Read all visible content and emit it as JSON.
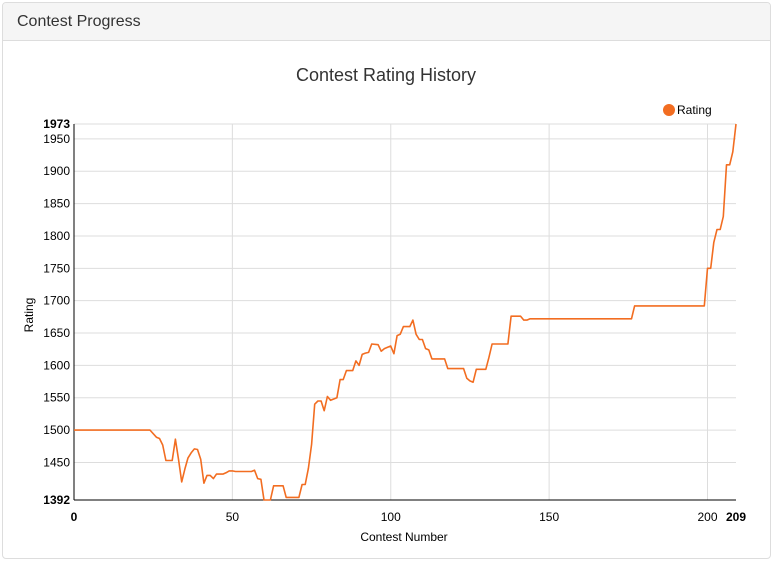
{
  "panel": {
    "heading": "Contest Progress"
  },
  "colors": {
    "series": "#f26d21",
    "grid": "#dddddd",
    "heading_bg": "#f5f5f5"
  },
  "chart_data": {
    "type": "line",
    "title": "Contest Rating History",
    "xlabel": "Contest Number",
    "ylabel": "Rating",
    "xlim": [
      0,
      209
    ],
    "ylim": [
      1392,
      1973
    ],
    "xticks": [
      0,
      50,
      100,
      150,
      200,
      209
    ],
    "yticks": [
      1392,
      1450,
      1500,
      1550,
      1600,
      1650,
      1700,
      1750,
      1800,
      1850,
      1900,
      1950,
      1973
    ],
    "bold_ticks": {
      "x": [
        0,
        209
      ],
      "y": [
        1392,
        1973
      ]
    },
    "grid": true,
    "legend_position": "top-right",
    "series": [
      {
        "name": "Rating",
        "points": [
          [
            0,
            1500
          ],
          [
            24,
            1500
          ],
          [
            26,
            1489
          ],
          [
            27,
            1487
          ],
          [
            28,
            1477
          ],
          [
            29,
            1453
          ],
          [
            31,
            1453
          ],
          [
            32,
            1486
          ],
          [
            33,
            1455
          ],
          [
            34,
            1420
          ],
          [
            35,
            1440
          ],
          [
            36,
            1457
          ],
          [
            37,
            1465
          ],
          [
            38,
            1471
          ],
          [
            39,
            1470
          ],
          [
            40,
            1455
          ],
          [
            41,
            1418
          ],
          [
            42,
            1430
          ],
          [
            43,
            1430
          ],
          [
            44,
            1425
          ],
          [
            45,
            1432
          ],
          [
            47,
            1432
          ],
          [
            48,
            1434
          ],
          [
            49,
            1437
          ],
          [
            50,
            1437
          ],
          [
            51,
            1436
          ],
          [
            56,
            1436
          ],
          [
            57,
            1438
          ],
          [
            58,
            1425
          ],
          [
            59,
            1424
          ],
          [
            60,
            1392
          ],
          [
            62,
            1392
          ],
          [
            63,
            1414
          ],
          [
            66,
            1414
          ],
          [
            67,
            1396
          ],
          [
            71,
            1396
          ],
          [
            72,
            1416
          ],
          [
            73,
            1416
          ],
          [
            74,
            1441
          ],
          [
            75,
            1478
          ],
          [
            76,
            1540
          ],
          [
            77,
            1545
          ],
          [
            78,
            1545
          ],
          [
            79,
            1530
          ],
          [
            80,
            1552
          ],
          [
            81,
            1546
          ],
          [
            83,
            1550
          ],
          [
            84,
            1578
          ],
          [
            85,
            1578
          ],
          [
            86,
            1592
          ],
          [
            88,
            1592
          ],
          [
            89,
            1607
          ],
          [
            90,
            1600
          ],
          [
            91,
            1617
          ],
          [
            92,
            1619
          ],
          [
            93,
            1620
          ],
          [
            94,
            1633
          ],
          [
            96,
            1632
          ],
          [
            97,
            1622
          ],
          [
            98,
            1626
          ],
          [
            99,
            1628
          ],
          [
            100,
            1630
          ],
          [
            101,
            1618
          ],
          [
            102,
            1646
          ],
          [
            103,
            1648
          ],
          [
            104,
            1660
          ],
          [
            106,
            1660
          ],
          [
            107,
            1670
          ],
          [
            108,
            1648
          ],
          [
            109,
            1640
          ],
          [
            110,
            1640
          ],
          [
            111,
            1626
          ],
          [
            112,
            1624
          ],
          [
            113,
            1610
          ],
          [
            117,
            1610
          ],
          [
            118,
            1595
          ],
          [
            123,
            1595
          ],
          [
            124,
            1580
          ],
          [
            125,
            1576
          ],
          [
            126,
            1574
          ],
          [
            127,
            1594
          ],
          [
            130,
            1594
          ],
          [
            131,
            1612
          ],
          [
            132,
            1633
          ],
          [
            137,
            1633
          ],
          [
            138,
            1676
          ],
          [
            141,
            1676
          ],
          [
            142,
            1670
          ],
          [
            143,
            1670
          ],
          [
            144,
            1672
          ],
          [
            176,
            1672
          ],
          [
            177,
            1692
          ],
          [
            199,
            1692
          ],
          [
            200,
            1750
          ],
          [
            201,
            1750
          ],
          [
            202,
            1790
          ],
          [
            203,
            1810
          ],
          [
            204,
            1810
          ],
          [
            205,
            1830
          ],
          [
            206,
            1910
          ],
          [
            207,
            1910
          ],
          [
            208,
            1930
          ],
          [
            209,
            1973
          ]
        ]
      }
    ]
  }
}
